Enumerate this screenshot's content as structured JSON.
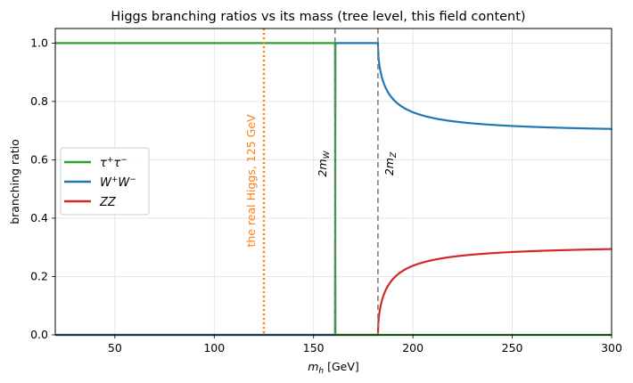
{
  "chart_data": {
    "type": "line",
    "title": "Higgs branching ratios vs its mass (tree level, this field content)",
    "xlabel": "m_h  [GeV]",
    "ylabel": "branching ratio",
    "xlim": [
      20,
      300
    ],
    "ylim": [
      0,
      1.05
    ],
    "xticks": [
      50,
      100,
      150,
      200,
      250,
      300
    ],
    "yticks": [
      0.0,
      0.2,
      0.4,
      0.6,
      0.8,
      1.0
    ],
    "grid": true,
    "legend_position": "center-left",
    "thresholds": {
      "w": 160.8,
      "z": 182.4
    },
    "markers": [
      {
        "name": "2m_W",
        "x": 160.8,
        "label": "2m_W",
        "color": "#7f7f7f"
      },
      {
        "name": "2m_Z",
        "x": 182.4,
        "label": "2m_Z",
        "color": "#7f7f7f"
      },
      {
        "name": "higgs",
        "x": 125,
        "label": "the real Higgs, 125 GeV",
        "color": "#ff7f0e"
      }
    ],
    "series": [
      {
        "name": "τ⁺τ⁻",
        "color": "#2ca02c"
      },
      {
        "name": "W⁺W⁻",
        "color": "#1f77b4"
      },
      {
        "name": "ZZ",
        "color": "#d62728"
      }
    ],
    "sample_points": {
      "x": [
        20,
        100,
        160,
        162,
        170,
        182,
        183,
        190,
        200,
        220,
        250,
        280,
        300
      ],
      "tau": [
        1.0,
        1.0,
        1.0,
        0.0,
        0.0,
        0.0,
        0.0,
        0.0,
        0.0,
        0.0,
        0.0,
        0.0,
        0.0
      ],
      "ww": [
        0.0,
        0.0,
        0.0,
        1.0,
        1.0,
        1.0,
        0.88,
        0.79,
        0.76,
        0.72,
        0.7,
        0.69,
        0.69
      ],
      "zz": [
        0.0,
        0.0,
        0.0,
        0.0,
        0.0,
        0.0,
        0.12,
        0.21,
        0.24,
        0.28,
        0.3,
        0.31,
        0.31
      ]
    }
  }
}
